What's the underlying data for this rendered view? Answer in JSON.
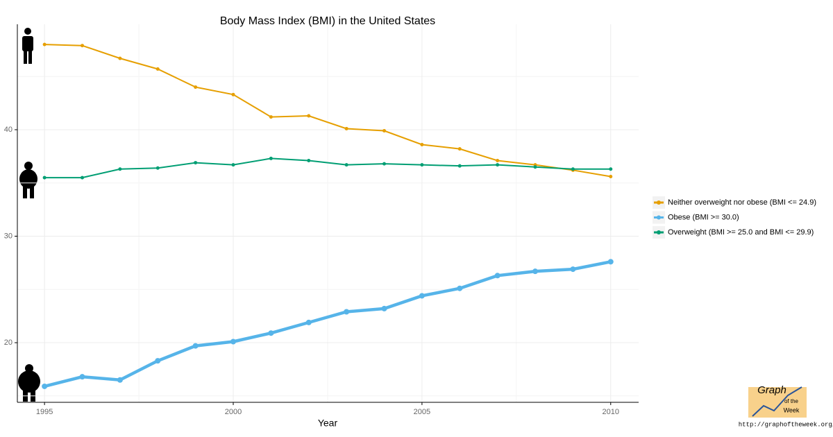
{
  "chart_data": {
    "type": "line",
    "title": "Body Mass Index (BMI) in the United States",
    "x_label": "Year",
    "x": [
      1995,
      1996,
      1997,
      1998,
      1999,
      2000,
      2001,
      2002,
      2003,
      2004,
      2005,
      2006,
      2007,
      2008,
      2009,
      2010
    ],
    "series": [
      {
        "name": "Neither overweight nor obese (BMI <= 24.9)",
        "color": "#e69f00",
        "values": [
          48.0,
          47.9,
          46.7,
          45.7,
          44.0,
          43.3,
          41.2,
          41.3,
          40.1,
          39.9,
          38.6,
          38.2,
          37.1,
          36.7,
          36.2,
          35.6
        ]
      },
      {
        "name": "Obese (BMI >= 30.0)",
        "color": "#56b4e9",
        "values": [
          15.9,
          16.8,
          16.5,
          18.3,
          19.7,
          20.1,
          20.9,
          21.9,
          22.9,
          23.2,
          24.4,
          25.1,
          26.3,
          26.7,
          26.9,
          27.6
        ]
      },
      {
        "name": "Overweight (BMI >= 25.0 and BMI <= 29.9)",
        "color": "#009e73",
        "values": [
          35.5,
          35.5,
          36.3,
          36.4,
          36.9,
          36.7,
          37.3,
          37.1,
          36.7,
          36.8,
          36.7,
          36.6,
          36.7,
          36.5,
          36.3,
          36.3
        ]
      }
    ],
    "xlim": [
      1994.28,
      2010.74
    ],
    "xticks": [
      1995,
      2000,
      2005,
      2010
    ],
    "x_minor_ticks": [
      1997.5,
      2002.5,
      2007.5
    ],
    "ylim": [
      14.4,
      49.9
    ],
    "yticks": [
      20,
      30,
      40
    ],
    "y_minor_ticks": [
      15,
      25,
      35,
      45
    ],
    "grid": true,
    "legend": "right"
  },
  "branding": {
    "logo_line1": "Graph",
    "logo_line2": "of the",
    "logo_line3": "Week",
    "url": "http://graphoftheweek.org/"
  }
}
